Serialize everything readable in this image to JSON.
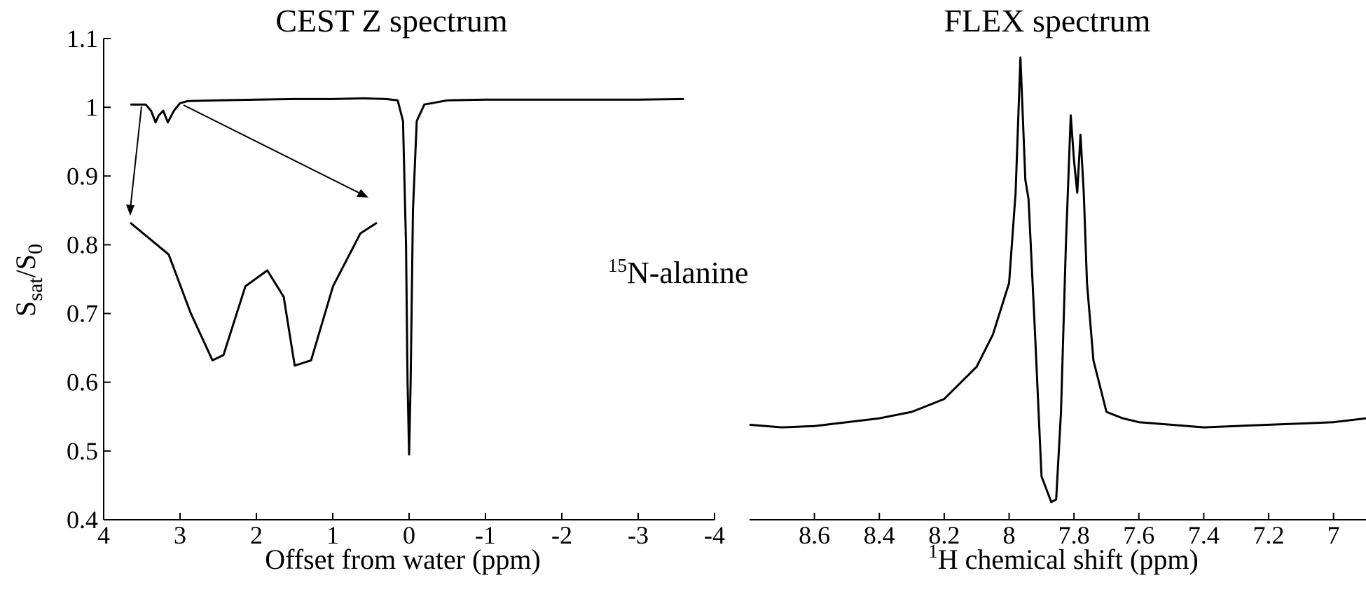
{
  "chart_data": [
    {
      "type": "line",
      "title": "CEST Z spectrum",
      "xlabel": "Offset from water (ppm)",
      "ylabel": {
        "base": "S",
        "sub": "sat",
        "sep": "/S",
        "sub2": "0"
      },
      "x_reversed": true,
      "xlim": [
        4,
        -4
      ],
      "ylim": [
        0.4,
        1.1
      ],
      "xticks": [
        "4",
        "3",
        "2",
        "1",
        "0",
        "-1",
        "-2",
        "-3",
        "-4"
      ],
      "yticks": [
        "0.4",
        "0.5",
        "0.6",
        "0.7",
        "0.8",
        "0.9",
        "1",
        "1.1"
      ],
      "grid": false,
      "series": [
        {
          "x": [
            3.65,
            3.45,
            3.38,
            3.32,
            3.28,
            3.22,
            3.16,
            3.08,
            3.0,
            2.9,
            2.5,
            2.0,
            1.5,
            1.0,
            0.6,
            0.3,
            0.15,
            0.08,
            0.04,
            0.02,
            0.0,
            -0.02,
            -0.05,
            -0.1,
            -0.2,
            -0.5,
            -1.0,
            -2.0,
            -3.0,
            -3.6
          ],
          "y": [
            1.004,
            1.004,
            0.995,
            0.978,
            0.988,
            0.995,
            0.978,
            0.995,
            1.006,
            1.009,
            1.01,
            1.011,
            1.012,
            1.012,
            1.013,
            1.012,
            1.01,
            0.98,
            0.8,
            0.6,
            0.495,
            0.6,
            0.85,
            0.98,
            1.004,
            1.01,
            1.011,
            1.011,
            1.011,
            1.012
          ]
        }
      ],
      "inset": {
        "x": [
          3.45,
          3.38,
          3.34,
          3.3,
          3.28,
          3.24,
          3.2,
          3.17,
          3.15,
          3.12,
          3.08,
          3.03,
          3.0
        ],
        "y": [
          1.004,
          0.998,
          0.987,
          0.978,
          0.979,
          0.992,
          0.995,
          0.99,
          0.977,
          0.978,
          0.992,
          1.002,
          1.004
        ]
      },
      "annotations": [
        {
          "text": "15",
          "text2": "N-alanine"
        }
      ]
    },
    {
      "type": "line",
      "title": "FLEX spectrum",
      "xlabel": {
        "sup": "1",
        "text": "H chemical shift (ppm)"
      },
      "x_reversed": true,
      "xlim": [
        8.8,
        6.9
      ],
      "xticks": [
        "8.6",
        "8.4",
        "8.2",
        "8",
        "7.8",
        "7.6",
        "7.4",
        "7.2",
        "7"
      ],
      "grid": false,
      "series": [
        {
          "x": [
            8.8,
            8.7,
            8.6,
            8.5,
            8.4,
            8.3,
            8.2,
            8.1,
            8.05,
            8.0,
            7.98,
            7.965,
            7.95,
            7.94,
            7.92,
            7.9,
            7.87,
            7.855,
            7.84,
            7.825,
            7.81,
            7.8,
            7.79,
            7.78,
            7.77,
            7.76,
            7.74,
            7.7,
            7.65,
            7.6,
            7.5,
            7.4,
            7.3,
            7.2,
            7.1,
            7.0,
            6.9
          ],
          "y": [
            0.4,
            0.38,
            0.39,
            0.42,
            0.45,
            0.5,
            0.6,
            0.85,
            1.1,
            1.5,
            2.2,
            3.25,
            2.3,
            2.15,
            1.1,
            0.0,
            -0.2,
            -0.18,
            0.5,
            1.8,
            2.8,
            2.45,
            2.2,
            2.65,
            2.2,
            1.5,
            0.9,
            0.5,
            0.45,
            0.42,
            0.4,
            0.38,
            0.39,
            0.4,
            0.41,
            0.42,
            0.45
          ]
        }
      ]
    }
  ]
}
